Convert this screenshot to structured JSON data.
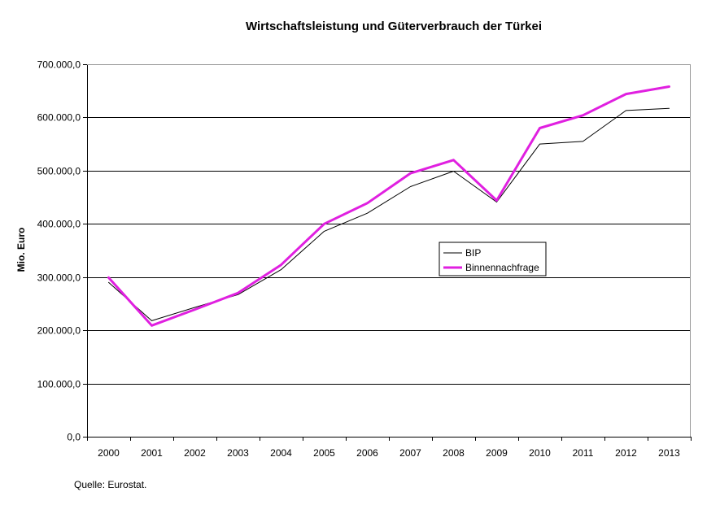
{
  "chart_data": {
    "type": "line",
    "title": "Wirtschaftsleistung und Güterverbrauch der Türkei",
    "xlabel": "",
    "ylabel": "Mio. Euro",
    "categories": [
      "2000",
      "2001",
      "2002",
      "2003",
      "2004",
      "2005",
      "2006",
      "2007",
      "2008",
      "2009",
      "2010",
      "2011",
      "2012",
      "2013"
    ],
    "ylim": [
      0,
      700000
    ],
    "yticks": [
      0,
      100000,
      200000,
      300000,
      400000,
      500000,
      600000,
      700000
    ],
    "ytick_labels": [
      "0,0",
      "100.000,0",
      "200.000,0",
      "300.000,0",
      "400.000,0",
      "500.000,0",
      "600.000,0",
      "700.000,0"
    ],
    "grid": true,
    "legend_position": "center-right",
    "series": [
      {
        "name": "BIP",
        "color": "#000000",
        "values": [
          290000,
          218000,
          243000,
          267000,
          314000,
          386000,
          420000,
          470000,
          499000,
          441000,
          550000,
          555000,
          613000,
          617000
        ]
      },
      {
        "name": "Binnennachfrage",
        "color": "#e020e0",
        "values": [
          299000,
          209000,
          239000,
          270000,
          323000,
          400000,
          439000,
          495000,
          520000,
          444000,
          580000,
          604000,
          644000,
          658000
        ]
      }
    ],
    "source_note": "Quelle: Eurostat."
  }
}
